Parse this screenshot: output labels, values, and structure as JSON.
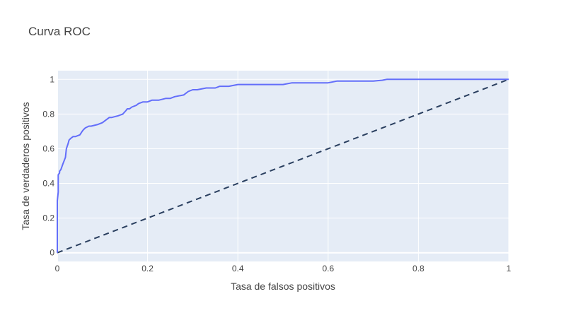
{
  "chart_data": {
    "type": "line",
    "title": "Curva ROC",
    "xlabel": "Tasa de falsos positivos",
    "ylabel": "Tasa de verdaderos positivos",
    "xlim": [
      0,
      1
    ],
    "ylim": [
      -0.05,
      1.05
    ],
    "xticks": [
      0,
      0.2,
      0.4,
      0.6,
      0.8,
      1
    ],
    "xtick_labels": [
      "0",
      "0.2",
      "0.4",
      "0.6",
      "0.8",
      "1"
    ],
    "yticks": [
      0,
      0.2,
      0.4,
      0.6,
      0.8,
      1
    ],
    "ytick_labels": [
      "0",
      "0.2",
      "0.4",
      "0.6",
      "0.8",
      "1"
    ],
    "grid": true,
    "colors": {
      "plot_bg": "#e5ecf6",
      "roc": "#636efa",
      "diagonal": "#2a3f5f",
      "grid": "#ffffff",
      "text": "#444444"
    },
    "series": [
      {
        "style": "solid",
        "x": [
          0,
          0,
          0.002,
          0.002,
          0.005,
          0.005,
          0.008,
          0.012,
          0.015,
          0.018,
          0.02,
          0.024,
          0.026,
          0.03,
          0.035,
          0.04,
          0.05,
          0.055,
          0.058,
          0.062,
          0.07,
          0.075,
          0.09,
          0.1,
          0.11,
          0.115,
          0.12,
          0.135,
          0.145,
          0.152,
          0.155,
          0.16,
          0.165,
          0.175,
          0.18,
          0.19,
          0.2,
          0.21,
          0.225,
          0.24,
          0.25,
          0.26,
          0.28,
          0.29,
          0.3,
          0.31,
          0.33,
          0.35,
          0.36,
          0.38,
          0.4,
          0.42,
          0.5,
          0.52,
          0.55,
          0.6,
          0.62,
          0.65,
          0.7,
          0.72,
          0.73,
          0.8,
          0.9,
          0.91,
          1.0
        ],
        "y": [
          0,
          0.3,
          0.35,
          0.45,
          0.46,
          0.47,
          0.48,
          0.51,
          0.53,
          0.55,
          0.6,
          0.63,
          0.65,
          0.66,
          0.67,
          0.67,
          0.68,
          0.7,
          0.71,
          0.72,
          0.73,
          0.73,
          0.74,
          0.75,
          0.77,
          0.78,
          0.78,
          0.79,
          0.8,
          0.82,
          0.83,
          0.83,
          0.84,
          0.85,
          0.86,
          0.87,
          0.87,
          0.88,
          0.88,
          0.89,
          0.89,
          0.9,
          0.91,
          0.93,
          0.94,
          0.94,
          0.95,
          0.95,
          0.96,
          0.96,
          0.97,
          0.97,
          0.97,
          0.98,
          0.98,
          0.98,
          0.99,
          0.99,
          0.99,
          0.995,
          1.0,
          1.0,
          1.0,
          1.0,
          1.0
        ]
      },
      {
        "style": "dashed",
        "x": [
          0,
          1
        ],
        "y": [
          0,
          1
        ]
      }
    ]
  }
}
